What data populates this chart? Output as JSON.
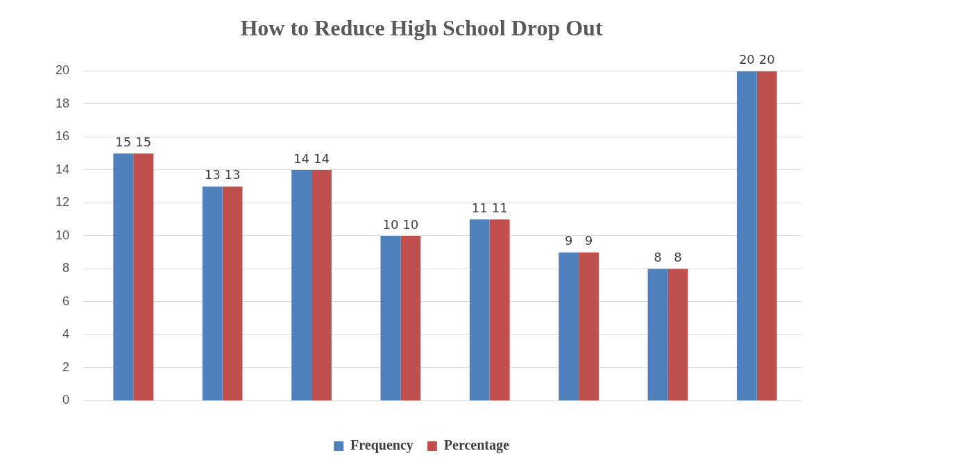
{
  "chart_data": {
    "type": "bar",
    "title": "How to Reduce High School Drop Out",
    "categories": [
      null,
      null,
      null,
      null,
      null,
      null,
      null,
      null
    ],
    "series": [
      {
        "name": "Frequency",
        "color": "#4f81bd",
        "values": [
          15,
          13,
          14,
          10,
          11,
          9,
          8,
          20
        ]
      },
      {
        "name": "Percentage",
        "color": "#c0504d",
        "values": [
          15,
          13,
          14,
          10,
          11,
          9,
          8,
          20
        ]
      }
    ],
    "ylim": [
      0,
      20
    ],
    "yticks": [
      0,
      2,
      4,
      6,
      8,
      10,
      12,
      14,
      16,
      18,
      20
    ],
    "grid": "y",
    "legend": "bottom",
    "data_labels": true
  }
}
